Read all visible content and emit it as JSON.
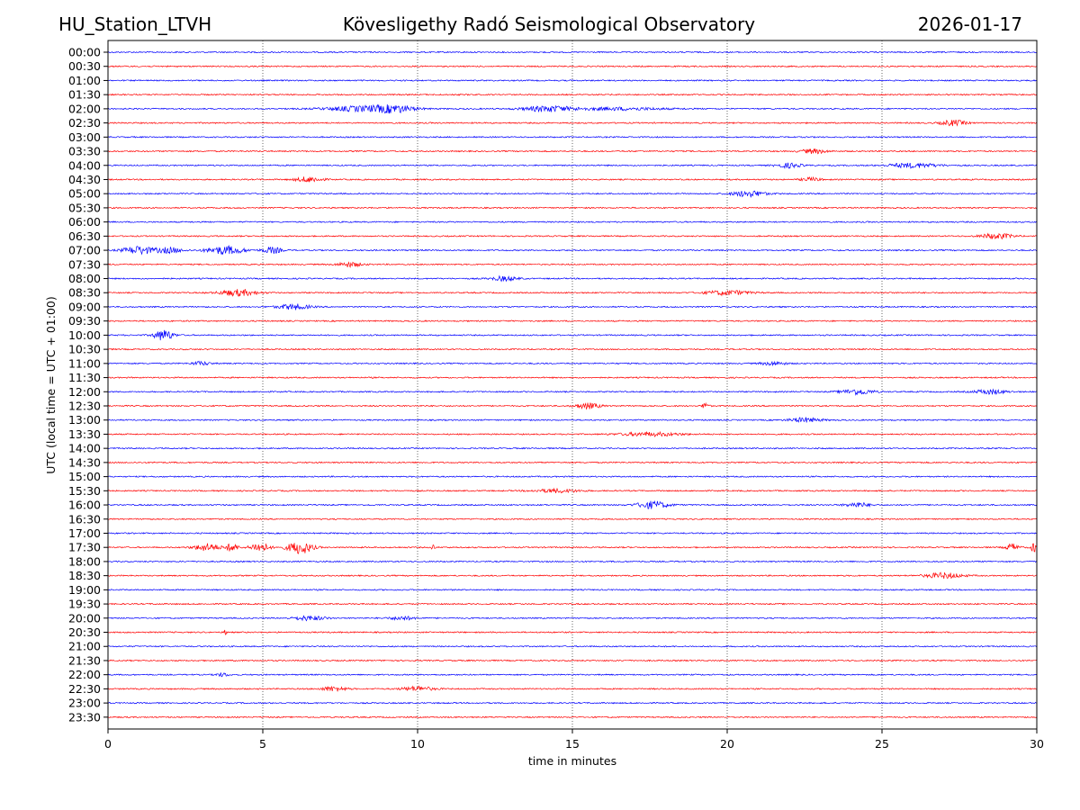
{
  "header": {
    "station": "HU_Station_LTVH",
    "title": "Kövesligethy Radó Seismological Observatory",
    "date": "2026-01-17"
  },
  "chart_data": {
    "type": "line",
    "title": "Kövesligethy Radó Seismological Observatory",
    "xlabel": "time in minutes",
    "ylabel": "UTC (local time = UTC + 01:00)",
    "xlim": [
      0,
      30
    ],
    "xticks": [
      "0",
      "5",
      "10",
      "15",
      "20",
      "25",
      "30"
    ],
    "grid": "vertical dotted at 5-minute intervals",
    "colors": [
      "#0000ff",
      "#ff0000"
    ],
    "rows": [
      "00:00",
      "00:30",
      "01:00",
      "01:30",
      "02:00",
      "02:30",
      "03:00",
      "03:30",
      "04:00",
      "04:30",
      "05:00",
      "05:30",
      "06:00",
      "06:30",
      "07:00",
      "07:30",
      "08:00",
      "08:30",
      "09:00",
      "09:30",
      "10:00",
      "10:30",
      "11:00",
      "11:30",
      "12:00",
      "12:30",
      "13:00",
      "13:30",
      "14:00",
      "14:30",
      "15:00",
      "15:30",
      "16:00",
      "16:30",
      "17:00",
      "17:30",
      "18:00",
      "18:30",
      "19:00",
      "19:30",
      "20:00",
      "20:30",
      "21:00",
      "21:30",
      "22:00",
      "22:30",
      "23:00",
      "23:30"
    ],
    "events": [
      {
        "row": "02:00",
        "minute": 8.3,
        "width": 1.2,
        "amp": 3
      },
      {
        "row": "02:00",
        "minute": 9.3,
        "width": 0.6,
        "amp": 3
      },
      {
        "row": "02:00",
        "minute": 14.2,
        "width": 0.8,
        "amp": 3
      },
      {
        "row": "02:00",
        "minute": 16.5,
        "width": 1.5,
        "amp": 1.5
      },
      {
        "row": "02:30",
        "minute": 27.3,
        "width": 0.4,
        "amp": 3
      },
      {
        "row": "03:30",
        "minute": 22.8,
        "width": 0.4,
        "amp": 2.5
      },
      {
        "row": "04:00",
        "minute": 22.0,
        "width": 0.4,
        "amp": 2.5
      },
      {
        "row": "04:00",
        "minute": 26.0,
        "width": 0.8,
        "amp": 2.5
      },
      {
        "row": "04:30",
        "minute": 6.5,
        "width": 0.4,
        "amp": 3
      },
      {
        "row": "04:30",
        "minute": 22.7,
        "width": 0.3,
        "amp": 2
      },
      {
        "row": "05:00",
        "minute": 20.7,
        "width": 0.5,
        "amp": 3.5
      },
      {
        "row": "06:30",
        "minute": 28.7,
        "width": 0.5,
        "amp": 3
      },
      {
        "row": "07:00",
        "minute": 1.0,
        "width": 0.5,
        "amp": 4.5
      },
      {
        "row": "07:00",
        "minute": 2.0,
        "width": 0.4,
        "amp": 3
      },
      {
        "row": "07:00",
        "minute": 3.8,
        "width": 0.6,
        "amp": 4.5
      },
      {
        "row": "07:00",
        "minute": 5.3,
        "width": 0.3,
        "amp": 3.5
      },
      {
        "row": "07:30",
        "minute": 7.8,
        "width": 0.4,
        "amp": 2.5
      },
      {
        "row": "08:00",
        "minute": 12.8,
        "width": 0.4,
        "amp": 2.5
      },
      {
        "row": "08:30",
        "minute": 4.2,
        "width": 0.6,
        "amp": 3.5
      },
      {
        "row": "08:30",
        "minute": 20.0,
        "width": 0.7,
        "amp": 2.5
      },
      {
        "row": "09:00",
        "minute": 6.0,
        "width": 0.5,
        "amp": 3
      },
      {
        "row": "10:00",
        "minute": 1.8,
        "width": 0.3,
        "amp": 6
      },
      {
        "row": "11:00",
        "minute": 3.0,
        "width": 0.3,
        "amp": 2
      },
      {
        "row": "11:00",
        "minute": 21.5,
        "width": 0.4,
        "amp": 2
      },
      {
        "row": "12:00",
        "minute": 24.2,
        "width": 0.5,
        "amp": 3
      },
      {
        "row": "12:00",
        "minute": 28.5,
        "width": 0.5,
        "amp": 2.5
      },
      {
        "row": "12:30",
        "minute": 15.5,
        "width": 0.4,
        "amp": 3
      },
      {
        "row": "12:30",
        "minute": 19.3,
        "width": 0.1,
        "amp": 4
      },
      {
        "row": "13:00",
        "minute": 22.5,
        "width": 0.5,
        "amp": 2.5
      },
      {
        "row": "13:30",
        "minute": 17.5,
        "width": 1.0,
        "amp": 2
      },
      {
        "row": "15:30",
        "minute": 14.5,
        "width": 0.7,
        "amp": 2
      },
      {
        "row": "16:00",
        "minute": 17.6,
        "width": 0.5,
        "amp": 4
      },
      {
        "row": "16:00",
        "minute": 24.2,
        "width": 0.4,
        "amp": 2.5
      },
      {
        "row": "17:30",
        "minute": 3.2,
        "width": 0.4,
        "amp": 4
      },
      {
        "row": "17:30",
        "minute": 4.0,
        "width": 0.2,
        "amp": 4.5
      },
      {
        "row": "17:30",
        "minute": 4.9,
        "width": 0.3,
        "amp": 5
      },
      {
        "row": "17:30",
        "minute": 6.2,
        "width": 0.4,
        "amp": 7
      },
      {
        "row": "17:30",
        "minute": 10.5,
        "width": 0.05,
        "amp": 4
      },
      {
        "row": "17:30",
        "minute": 29.2,
        "width": 0.2,
        "amp": 4
      },
      {
        "row": "17:30",
        "minute": 29.9,
        "width": 0.1,
        "amp": 5
      },
      {
        "row": "18:30",
        "minute": 27.0,
        "width": 0.6,
        "amp": 3
      },
      {
        "row": "20:00",
        "minute": 6.5,
        "width": 0.5,
        "amp": 2.5
      },
      {
        "row": "20:00",
        "minute": 9.5,
        "width": 0.4,
        "amp": 2
      },
      {
        "row": "20:30",
        "minute": 3.8,
        "width": 0.05,
        "amp": 3
      },
      {
        "row": "22:00",
        "minute": 3.7,
        "width": 0.2,
        "amp": 2
      },
      {
        "row": "22:30",
        "minute": 7.3,
        "width": 0.4,
        "amp": 2.5
      },
      {
        "row": "22:30",
        "minute": 10.0,
        "width": 0.5,
        "amp": 2.5
      }
    ]
  }
}
